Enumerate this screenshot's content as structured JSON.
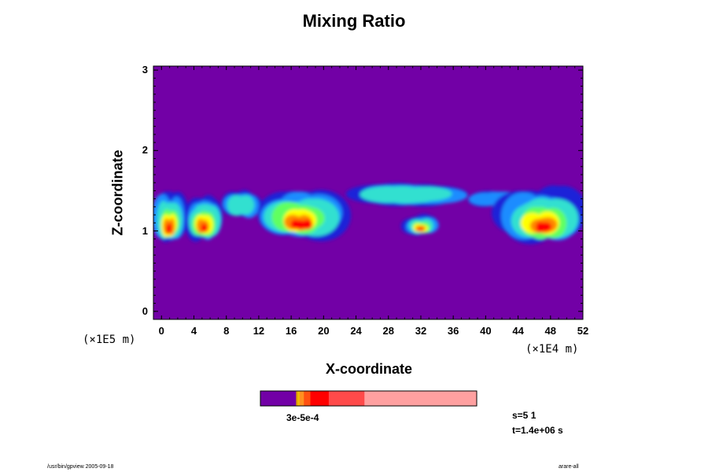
{
  "chart_data": {
    "type": "heatmap",
    "title": "Mixing Ratio",
    "xlabel": "X-coordinate",
    "ylabel": "Z-coordinate",
    "x_unit": "(×1E4 m)",
    "y_unit": "(×1E5 m)",
    "xlim": [
      -1,
      52
    ],
    "ylim": [
      -0.1,
      3.05
    ],
    "x_ticks": [
      0,
      4,
      8,
      12,
      16,
      20,
      24,
      28,
      32,
      36,
      40,
      44,
      48,
      52
    ],
    "y_ticks": [
      0,
      1,
      2,
      3
    ],
    "background_color": "#7200a6",
    "colorbar": {
      "label": "3e-5e-4",
      "segments": [
        {
          "fraction": 0.165,
          "color": "#7200a6"
        },
        {
          "fraction": 0.008,
          "color": "#e0a000"
        },
        {
          "fraction": 0.008,
          "color": "#f0c000"
        },
        {
          "fraction": 0.02,
          "color": "#ff9020"
        },
        {
          "fraction": 0.03,
          "color": "#ff5010"
        },
        {
          "fraction": 0.085,
          "color": "#ff0000"
        },
        {
          "fraction": 0.165,
          "color": "#ff4a4a"
        },
        {
          "fraction": 0.519,
          "color": "#ffa0a0"
        }
      ]
    },
    "clouds": [
      {
        "x": [
          -1,
          3
        ],
        "z": [
          0.85,
          1.5
        ],
        "peak": "red"
      },
      {
        "x": [
          3,
          7.5
        ],
        "z": [
          0.88,
          1.45
        ],
        "peak": "red"
      },
      {
        "x": [
          7.5,
          12
        ],
        "z": [
          1.15,
          1.5
        ],
        "peak": "cyan"
      },
      {
        "x": [
          12,
          22.5
        ],
        "z": [
          0.9,
          1.55
        ],
        "peak": "red"
      },
      {
        "x": [
          24,
          37
        ],
        "z": [
          1.3,
          1.6
        ],
        "peak": "cyan"
      },
      {
        "x": [
          30,
          34
        ],
        "z": [
          0.95,
          1.2
        ],
        "peak": "red"
      },
      {
        "x": [
          38,
          44
        ],
        "z": [
          1.3,
          1.5
        ],
        "peak": "blue"
      },
      {
        "x": [
          42,
          52
        ],
        "z": [
          0.85,
          1.55
        ],
        "peak": "red"
      }
    ]
  },
  "info": {
    "step": "s=5 1",
    "time": "t=1.4e+06 s"
  },
  "footer": {
    "left": "/usr/bin/gpview 2005-09-18",
    "right": "arare-all"
  }
}
